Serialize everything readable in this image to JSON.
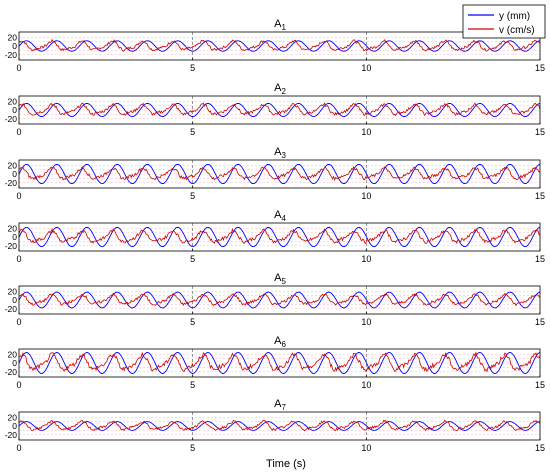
{
  "chart_data": [
    {
      "type": "line",
      "title": "A",
      "title_sub": "1",
      "xlim": [
        0,
        15
      ],
      "ylim": [
        -32,
        32
      ],
      "xticks": [
        "0",
        "5",
        "10",
        "15"
      ],
      "yticks": [
        "20",
        "0",
        "-20"
      ],
      "grid": true,
      "series": [
        {
          "name": "y (mm)",
          "color": "#0000ff",
          "amplitude": 12,
          "period": 0.87
        },
        {
          "name": "v (cm/s)",
          "color": "#cc0000",
          "amplitude": 12,
          "period": 0.87
        }
      ]
    },
    {
      "type": "line",
      "title": "A",
      "title_sub": "2",
      "xlim": [
        0,
        15
      ],
      "ylim": [
        -32,
        32
      ],
      "xticks": [
        "0",
        "5",
        "10",
        "15"
      ],
      "yticks": [
        "20",
        "0",
        "-20"
      ],
      "grid": true,
      "series": [
        {
          "name": "y (mm)",
          "color": "#0000ff",
          "amplitude": 15,
          "period": 0.87
        },
        {
          "name": "v (cm/s)",
          "color": "#cc0000",
          "amplitude": 13,
          "period": 0.87
        }
      ]
    },
    {
      "type": "line",
      "title": "A",
      "title_sub": "3",
      "xlim": [
        0,
        15
      ],
      "ylim": [
        -32,
        32
      ],
      "xticks": [
        "0",
        "5",
        "10",
        "15"
      ],
      "yticks": [
        "20",
        "0",
        "-20"
      ],
      "grid": true,
      "series": [
        {
          "name": "y (mm)",
          "color": "#0000ff",
          "amplitude": 22,
          "period": 0.87
        },
        {
          "name": "v (cm/s)",
          "color": "#cc0000",
          "amplitude": 14,
          "period": 0.87
        }
      ]
    },
    {
      "type": "line",
      "title": "A",
      "title_sub": "4",
      "xlim": [
        0,
        15
      ],
      "ylim": [
        -32,
        32
      ],
      "xticks": [
        "0",
        "5",
        "10",
        "15"
      ],
      "yticks": [
        "20",
        "0",
        "-20"
      ],
      "grid": true,
      "series": [
        {
          "name": "y (mm)",
          "color": "#0000ff",
          "amplitude": 22,
          "period": 0.87
        },
        {
          "name": "v (cm/s)",
          "color": "#cc0000",
          "amplitude": 15,
          "period": 0.87
        }
      ]
    },
    {
      "type": "line",
      "title": "A",
      "title_sub": "5",
      "xlim": [
        0,
        15
      ],
      "ylim": [
        -32,
        32
      ],
      "xticks": [
        "0",
        "5",
        "10",
        "15"
      ],
      "yticks": [
        "20",
        "0",
        "-20"
      ],
      "grid": true,
      "series": [
        {
          "name": "y (mm)",
          "color": "#0000ff",
          "amplitude": 18,
          "period": 0.87
        },
        {
          "name": "v (cm/s)",
          "color": "#cc0000",
          "amplitude": 13,
          "period": 0.87
        }
      ]
    },
    {
      "type": "line",
      "title": "A",
      "title_sub": "6",
      "xlim": [
        0,
        15
      ],
      "ylim": [
        -32,
        32
      ],
      "xticks": [
        "0",
        "5",
        "10",
        "15"
      ],
      "yticks": [
        "20",
        "0",
        "-20"
      ],
      "grid": true,
      "series": [
        {
          "name": "y (mm)",
          "color": "#0000ff",
          "amplitude": 24,
          "period": 0.87
        },
        {
          "name": "v (cm/s)",
          "color": "#cc0000",
          "amplitude": 20,
          "period": 0.87
        }
      ]
    },
    {
      "type": "line",
      "title": "A",
      "title_sub": "7",
      "xlim": [
        0,
        15
      ],
      "ylim": [
        -32,
        32
      ],
      "xticks": [
        "0",
        "5",
        "10",
        "15"
      ],
      "yticks": [
        "20",
        "0",
        "-20"
      ],
      "grid": true,
      "series": [
        {
          "name": "y (mm)",
          "color": "#0000ff",
          "amplitude": 10,
          "period": 0.87
        },
        {
          "name": "v (cm/s)",
          "color": "#cc0000",
          "amplitude": 11,
          "period": 0.87
        }
      ]
    }
  ],
  "xlabel": "Time (s)",
  "legend": {
    "placement": "top-right",
    "entries": [
      {
        "label": "y (mm)",
        "color": "#0000ff"
      },
      {
        "label": "v (cm/s)",
        "color": "#cc0000"
      }
    ]
  }
}
